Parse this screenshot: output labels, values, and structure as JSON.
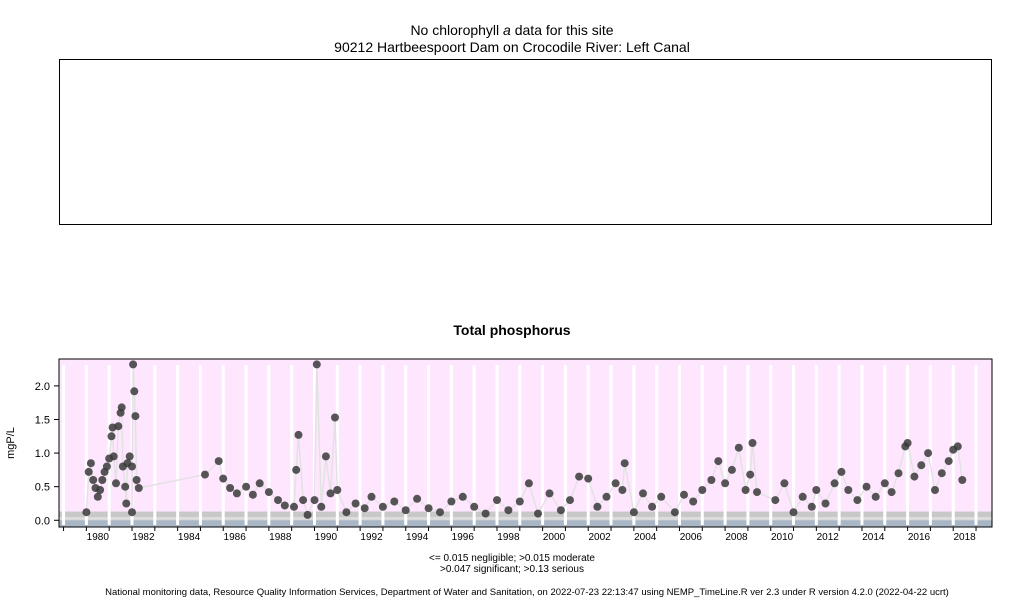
{
  "header": {
    "nochla_prefix": "No chlorophyll",
    "nochla_italic": "a",
    "nochla_suffix": "data for this site",
    "site_title": "90212 Hartbeespoort Dam on Crocodile River: Left Canal"
  },
  "legend": {
    "line1": "<= 0.015 negligible; >0.015 moderate",
    "line2": ">0.047 significant; >0.13 serious"
  },
  "footer": {
    "text": "National monitoring data, Resource Quality Information Services, Department of Water and Sanitation, on 2022-07-23 22:13:47 using NEMP_TimeLine.R ver 2.3 under R version 4.2.0 (2022-04-22 ucrt)"
  },
  "colors": {
    "panel_background": "#ffe6ff",
    "band_serious": "#c8c8c8",
    "band_significant": "#dcdcdc",
    "band_moderate": "#d6d6d6",
    "band_negligible": "#a9b6c6",
    "points": "#3a3a3a",
    "connector_line": "#e2e2e2",
    "year_gridlines": "#ffffff"
  },
  "chart_data": {
    "type": "scatter",
    "title": "Total phosphorus",
    "xlabel": "",
    "ylabel": "mgP/L",
    "xlim": [
      1978.8,
      2019.7
    ],
    "ylim": [
      -0.1,
      2.4
    ],
    "yticks": [
      0.0,
      0.5,
      1.0,
      1.5,
      2.0
    ],
    "ytick_labels": [
      "0.0",
      "0.5",
      "1.0",
      "1.5",
      "2.0"
    ],
    "xticks_labeled": [
      1980,
      1982,
      1984,
      1986,
      1988,
      1990,
      1992,
      1994,
      1996,
      1998,
      2000,
      2002,
      2004,
      2006,
      2008,
      2010,
      2012,
      2014,
      2016,
      2018
    ],
    "thresholds": {
      "negligible": 0.015,
      "moderate": 0.047,
      "serious": 0.13
    },
    "grid": "vertical white lines each year",
    "series": [
      {
        "values": [
          [
            1980.1,
            0.72
          ],
          [
            1980.2,
            0.85
          ],
          [
            1980.3,
            0.6
          ],
          [
            1980.4,
            0.48
          ],
          [
            1980.5,
            0.35
          ],
          [
            1980.6,
            0.45
          ],
          [
            1980.7,
            0.6
          ],
          [
            1980.8,
            0.72
          ],
          [
            1980.9,
            0.8
          ],
          [
            1981.0,
            0.92
          ],
          [
            1981.1,
            1.25
          ],
          [
            1981.15,
            1.38
          ],
          [
            1981.2,
            0.95
          ],
          [
            1981.3,
            0.55
          ],
          [
            1981.4,
            1.4
          ],
          [
            1981.5,
            1.6
          ],
          [
            1981.55,
            1.68
          ],
          [
            1981.6,
            0.8
          ],
          [
            1981.7,
            0.5
          ],
          [
            1981.8,
            0.85
          ],
          [
            1981.9,
            0.95
          ],
          [
            1982.0,
            0.8
          ],
          [
            1982.05,
            2.32
          ],
          [
            1982.1,
            1.92
          ],
          [
            1982.15,
            1.55
          ],
          [
            1982.2,
            0.6
          ],
          [
            1982.3,
            0.48
          ],
          [
            1980.0,
            0.12
          ],
          [
            1981.75,
            0.25
          ],
          [
            1982.0,
            0.12
          ],
          [
            1985.2,
            0.68
          ],
          [
            1985.8,
            0.88
          ],
          [
            1986.0,
            0.62
          ],
          [
            1986.3,
            0.48
          ],
          [
            1986.6,
            0.4
          ],
          [
            1987.0,
            0.5
          ],
          [
            1987.3,
            0.38
          ],
          [
            1987.6,
            0.55
          ],
          [
            1988.0,
            0.42
          ],
          [
            1988.4,
            0.3
          ],
          [
            1988.7,
            0.22
          ],
          [
            1989.1,
            0.2
          ],
          [
            1989.2,
            0.75
          ],
          [
            1989.3,
            1.27
          ],
          [
            1989.5,
            0.3
          ],
          [
            1989.7,
            0.08
          ],
          [
            1990.0,
            0.3
          ],
          [
            1990.1,
            2.32
          ],
          [
            1990.3,
            0.2
          ],
          [
            1990.5,
            0.95
          ],
          [
            1990.7,
            0.4
          ],
          [
            1990.9,
            1.53
          ],
          [
            1991.0,
            0.45
          ],
          [
            1991.4,
            0.12
          ],
          [
            1991.8,
            0.25
          ],
          [
            1992.2,
            0.18
          ],
          [
            1992.5,
            0.35
          ],
          [
            1993.0,
            0.2
          ],
          [
            1993.5,
            0.28
          ],
          [
            1994.0,
            0.15
          ],
          [
            1994.5,
            0.32
          ],
          [
            1995.0,
            0.18
          ],
          [
            1995.5,
            0.12
          ],
          [
            1996.0,
            0.28
          ],
          [
            1996.5,
            0.35
          ],
          [
            1997.0,
            0.2
          ],
          [
            1997.5,
            0.1
          ],
          [
            1998.0,
            0.3
          ],
          [
            1998.5,
            0.15
          ],
          [
            1999.0,
            0.28
          ],
          [
            1999.4,
            0.55
          ],
          [
            1999.8,
            0.1
          ],
          [
            2000.3,
            0.4
          ],
          [
            2000.8,
            0.15
          ],
          [
            2001.2,
            0.3
          ],
          [
            2001.6,
            0.65
          ],
          [
            2002.0,
            0.62
          ],
          [
            2002.4,
            0.2
          ],
          [
            2002.8,
            0.35
          ],
          [
            2003.2,
            0.55
          ],
          [
            2003.5,
            0.45
          ],
          [
            2003.6,
            0.85
          ],
          [
            2004.0,
            0.12
          ],
          [
            2004.4,
            0.4
          ],
          [
            2004.8,
            0.2
          ],
          [
            2005.2,
            0.35
          ],
          [
            2005.8,
            0.12
          ],
          [
            2006.2,
            0.38
          ],
          [
            2006.6,
            0.28
          ],
          [
            2007.0,
            0.45
          ],
          [
            2007.4,
            0.6
          ],
          [
            2007.7,
            0.88
          ],
          [
            2008.0,
            0.55
          ],
          [
            2008.3,
            0.75
          ],
          [
            2008.6,
            1.08
          ],
          [
            2008.9,
            0.45
          ],
          [
            2009.1,
            0.68
          ],
          [
            2009.2,
            1.15
          ],
          [
            2009.4,
            0.42
          ],
          [
            2010.2,
            0.3
          ],
          [
            2010.6,
            0.55
          ],
          [
            2011.0,
            0.12
          ],
          [
            2011.4,
            0.35
          ],
          [
            2011.8,
            0.2
          ],
          [
            2012.0,
            0.45
          ],
          [
            2012.4,
            0.25
          ],
          [
            2012.8,
            0.55
          ],
          [
            2013.1,
            0.72
          ],
          [
            2013.4,
            0.45
          ],
          [
            2013.8,
            0.3
          ],
          [
            2014.2,
            0.5
          ],
          [
            2014.6,
            0.35
          ],
          [
            2015.0,
            0.55
          ],
          [
            2015.3,
            0.42
          ],
          [
            2015.6,
            0.7
          ],
          [
            2015.9,
            1.1
          ],
          [
            2016.0,
            1.15
          ],
          [
            2016.3,
            0.65
          ],
          [
            2016.6,
            0.82
          ],
          [
            2016.9,
            1.0
          ],
          [
            2017.2,
            0.45
          ],
          [
            2017.5,
            0.7
          ],
          [
            2017.8,
            0.88
          ],
          [
            2018.0,
            1.05
          ],
          [
            2018.2,
            1.1
          ],
          [
            2018.4,
            0.6
          ]
        ]
      }
    ]
  }
}
